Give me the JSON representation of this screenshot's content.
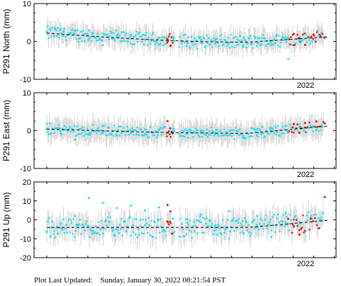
{
  "footer": {
    "label": "Plot Last Updated:",
    "timestamp": "Sunday, January 30, 2022 08:21:54 PST"
  },
  "colors": {
    "points": "#19e0f0",
    "recent_points": "#e01010",
    "error_bars": "#d4d4d4",
    "trend": "#000000"
  },
  "chart_data": [
    {
      "type": "scatter",
      "ylabel": "P291 North (mm)",
      "ylim": [
        -10,
        10
      ],
      "yticks": [
        -10,
        0,
        10
      ],
      "x_range": [
        "2020-12-06",
        "2022-02-06"
      ],
      "x_tick_label": "2022",
      "trend_endpoints": [
        2.2,
        1.2
      ],
      "trend_min": -0.2,
      "point_band": [
        -2.5,
        4.3
      ],
      "error_bar_halfwidth": 2.5,
      "series": [
        {
          "color": "cyan",
          "points": [
            [
              0.0,
              2.3
            ],
            [
              0.03,
              3.5
            ],
            [
              0.06,
              2.6
            ],
            [
              0.1,
              2.0
            ],
            [
              0.15,
              2.9
            ],
            [
              0.2,
              -1.0
            ],
            [
              0.25,
              1.4
            ],
            [
              0.3,
              1.7
            ],
            [
              0.35,
              0.5
            ],
            [
              0.4,
              1.0
            ],
            [
              0.45,
              1.1
            ],
            [
              0.5,
              -0.3
            ],
            [
              0.55,
              0.4
            ],
            [
              0.6,
              -0.6
            ],
            [
              0.65,
              -0.4
            ],
            [
              0.7,
              -1.1
            ],
            [
              0.75,
              -0.3
            ],
            [
              0.8,
              -0.9
            ],
            [
              0.86,
              -4.6
            ],
            [
              0.9,
              0.3
            ]
          ]
        },
        {
          "color": "red",
          "points": [
            [
              0.43,
              0.6
            ],
            [
              0.44,
              -1.2
            ],
            [
              0.88,
              2.0
            ],
            [
              0.9,
              0.9
            ],
            [
              0.92,
              -0.9
            ],
            [
              0.95,
              1.8
            ],
            [
              0.99,
              1.0
            ]
          ]
        }
      ]
    },
    {
      "type": "scatter",
      "ylabel": "P291 East (mm)",
      "ylim": [
        -10,
        10
      ],
      "yticks": [
        -10,
        0,
        10
      ],
      "x_range": [
        "2020-12-06",
        "2022-02-06"
      ],
      "x_tick_label": "2022",
      "trend_endpoints": [
        0.4,
        1.2
      ],
      "trend_min": -0.7,
      "point_band": [
        -2.8,
        2.4
      ],
      "error_bar_halfwidth": 2.8,
      "series": [
        {
          "color": "cyan",
          "points": [
            [
              0.0,
              0.5
            ],
            [
              0.05,
              -0.8
            ],
            [
              0.1,
              -2.4
            ],
            [
              0.15,
              -1.1
            ],
            [
              0.2,
              -0.5
            ],
            [
              0.25,
              -1.3
            ],
            [
              0.3,
              -0.6
            ],
            [
              0.35,
              -0.9
            ],
            [
              0.4,
              0.2
            ],
            [
              0.45,
              -0.1
            ],
            [
              0.5,
              -0.7
            ],
            [
              0.55,
              -0.3
            ],
            [
              0.6,
              -0.9
            ],
            [
              0.65,
              -0.1
            ],
            [
              0.7,
              -1.4
            ],
            [
              0.75,
              0.4
            ],
            [
              0.8,
              0.7
            ],
            [
              0.86,
              -0.5
            ],
            [
              0.9,
              0.9
            ]
          ]
        },
        {
          "color": "red",
          "points": [
            [
              0.43,
              2.5
            ],
            [
              0.44,
              0.6
            ],
            [
              0.88,
              1.7
            ],
            [
              0.9,
              -0.6
            ],
            [
              0.92,
              2.0
            ],
            [
              0.96,
              2.4
            ],
            [
              0.99,
              1.9
            ]
          ]
        }
      ]
    },
    {
      "type": "scatter",
      "ylabel": "P291 Up (mm)",
      "ylim": [
        -20,
        20
      ],
      "yticks": [
        -20,
        -10,
        0,
        10,
        20
      ],
      "x_range": [
        "2020-12-06",
        "2022-02-06"
      ],
      "x_tick_label": "2022",
      "trend_endpoints": [
        -4.0,
        -0.3
      ],
      "trend_min": -4.0,
      "point_band": [
        -10,
        10
      ],
      "error_bar_halfwidth": 5.5,
      "series": [
        {
          "color": "cyan",
          "points": [
            [
              0.0,
              -6.5
            ],
            [
              0.05,
              -2.0
            ],
            [
              0.1,
              2.0
            ],
            [
              0.15,
              11.5
            ],
            [
              0.2,
              9.0
            ],
            [
              0.25,
              6.2
            ],
            [
              0.3,
              7.5
            ],
            [
              0.35,
              5.0
            ],
            [
              0.4,
              6.5
            ],
            [
              0.45,
              0.6
            ],
            [
              0.5,
              -1.5
            ],
            [
              0.55,
              2.8
            ],
            [
              0.6,
              -3.0
            ],
            [
              0.65,
              4.5
            ],
            [
              0.7,
              -6.8
            ],
            [
              0.75,
              2.0
            ],
            [
              0.8,
              -9.0
            ],
            [
              0.85,
              3.5
            ],
            [
              0.9,
              -1.2
            ]
          ]
        },
        {
          "color": "red",
          "points": [
            [
              0.43,
              7.8
            ],
            [
              0.44,
              4.5
            ],
            [
              0.86,
              0.5
            ],
            [
              0.88,
              -3.5
            ],
            [
              0.9,
              -7.8
            ],
            [
              0.94,
              0.8
            ],
            [
              0.97,
              -4.5
            ],
            [
              0.99,
              12.0
            ]
          ]
        }
      ]
    }
  ]
}
